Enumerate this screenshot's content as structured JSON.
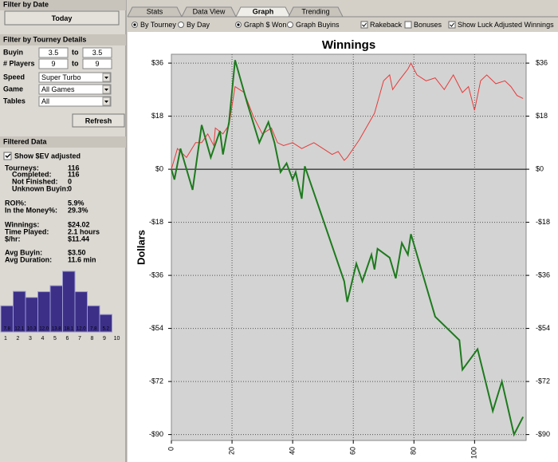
{
  "sidebar": {
    "date": {
      "title": "Filter by Date",
      "button": "Today"
    },
    "tourney": {
      "title": "Filter by Tourney Details",
      "buyin": {
        "label": "Buyin",
        "min": "3.5",
        "to": "to",
        "max": "3.5"
      },
      "players": {
        "label": "# Players",
        "min": "9",
        "to": "to",
        "max": "9"
      },
      "speed": {
        "label": "Speed",
        "value": "Super Turbo"
      },
      "game": {
        "label": "Game",
        "value": "All Games"
      },
      "tables": {
        "label": "Tables",
        "value": "All"
      },
      "refresh": "Refresh"
    },
    "filtered": {
      "title": "Filtered Data",
      "sev": "Show $EV adjusted",
      "stats": [
        {
          "label": "Tourneys:",
          "value": "116",
          "color": "#1a1a8c"
        },
        {
          "label": "Completed:",
          "value": "116",
          "color": "#1a1a8c"
        },
        {
          "label": "Not Finished:",
          "value": "0",
          "color": "#1a1a8c"
        },
        {
          "label": "Unknown Buyin:",
          "value": "0",
          "color": "#1a1a8c"
        },
        {
          "label": "ROI%:",
          "value": "5.9%",
          "color": "#e01010"
        },
        {
          "label": "In the Money%:",
          "value": "29.3%",
          "color": "#1a1a8c"
        },
        {
          "label": "Winnings:",
          "value": "$24.02",
          "color": "#e01010"
        },
        {
          "label": "Time Played:",
          "value": "2.1 hours",
          "color": "#1a1a8c"
        },
        {
          "label": "$/hr:",
          "value": "$11.44",
          "color": "#e01010"
        },
        {
          "label": "Avg Buyin:",
          "value": "$3.50",
          "color": "#1a1a8c"
        },
        {
          "label": "Avg Duration:",
          "value": "11.6 min",
          "color": "#1a1a8c"
        }
      ]
    },
    "histogram": {
      "bins": [
        1,
        2,
        3,
        4,
        5,
        6,
        7,
        8,
        9,
        10
      ],
      "values": [
        7.8,
        12.1,
        10.3,
        12.0,
        13.8,
        18.1,
        12.0,
        7.8,
        5.2
      ],
      "value_labels": [
        "7.8",
        "12.1",
        "10.3",
        "12.0",
        "13.8",
        "18.1",
        "12.0",
        "7.8",
        "5.2"
      ],
      "color": "#3b2f88"
    }
  },
  "tabs": [
    {
      "label": "Stats"
    },
    {
      "label": "Data View"
    },
    {
      "label": "Graph",
      "active": true
    },
    {
      "label": "Trending"
    }
  ],
  "options": [
    {
      "label": "By Tourney",
      "kind": "radio",
      "checked": true
    },
    {
      "label": "By Day",
      "kind": "radio",
      "checked": false
    },
    {
      "label": "Graph $ Won",
      "kind": "radio",
      "checked": true
    },
    {
      "label": "Graph Buyins",
      "kind": "radio",
      "checked": false
    },
    {
      "label": "Rakeback",
      "kind": "check",
      "checked": true
    },
    {
      "label": "Bonuses",
      "kind": "check",
      "checked": false
    },
    {
      "label": "Show Luck Adjusted Winnings",
      "kind": "check",
      "checked": true
    }
  ],
  "chart_data": {
    "type": "line",
    "title": "Winnings",
    "y_label": "Dollars",
    "xlim": [
      0,
      117
    ],
    "ylim": [
      -92,
      39
    ],
    "xticks": [
      0,
      20,
      40,
      60,
      80,
      100
    ],
    "yticks": [
      {
        "value": -90,
        "label": "-$90"
      },
      {
        "value": -72,
        "label": "-$72"
      },
      {
        "value": -54,
        "label": "-$54"
      },
      {
        "value": -36,
        "label": "-$36"
      },
      {
        "value": -18,
        "label": "-$18"
      },
      {
        "value": 0,
        "label": "$0"
      },
      {
        "value": 18,
        "label": "$18"
      },
      {
        "value": 36,
        "label": "$36"
      }
    ],
    "grid": true,
    "series": [
      {
        "color": "#e83a3a",
        "x": [
          0,
          2,
          5,
          8,
          10,
          12,
          14,
          14.5,
          17,
          19,
          21,
          24,
          27,
          30,
          33,
          35,
          37,
          40,
          43,
          47,
          50,
          53,
          55,
          57,
          58,
          62,
          67,
          70,
          72,
          73,
          75,
          78,
          79,
          81,
          84,
          87,
          90,
          93,
          96,
          98,
          100,
          102,
          104,
          107,
          110,
          112,
          114,
          116
        ],
        "values": [
          0,
          7,
          4,
          9,
          9,
          12,
          8,
          14,
          12,
          15,
          28,
          26,
          18,
          12,
          14,
          9,
          8,
          9,
          7,
          9,
          7,
          5,
          6,
          3,
          4,
          10,
          19,
          30,
          32,
          27,
          30,
          34,
          36,
          32,
          30,
          31,
          27,
          32,
          26,
          28,
          20,
          30,
          32,
          29,
          30,
          28,
          25,
          24
        ]
      },
      {
        "color": "#1e7a1e",
        "x": [
          0,
          1,
          3,
          7,
          10,
          13,
          16,
          17,
          19,
          21,
          25,
          29,
          32,
          34,
          36,
          38,
          40,
          41,
          43,
          44,
          57,
          58,
          61,
          63,
          66,
          67,
          68,
          72,
          74,
          76,
          78,
          79,
          87,
          95,
          96,
          101,
          106,
          109,
          113,
          116
        ],
        "values": [
          0,
          -3.5,
          7,
          -7,
          15,
          4,
          13,
          5,
          16,
          37,
          22.5,
          9,
          16,
          9,
          -1,
          2,
          -3.5,
          -1,
          -10,
          1,
          -38,
          -45,
          -32,
          -38,
          -29,
          -34,
          -27,
          -30,
          -37,
          -25,
          -29,
          -22,
          -50,
          -58,
          -68,
          -61,
          -82,
          -72,
          -90,
          -84
        ]
      }
    ]
  }
}
